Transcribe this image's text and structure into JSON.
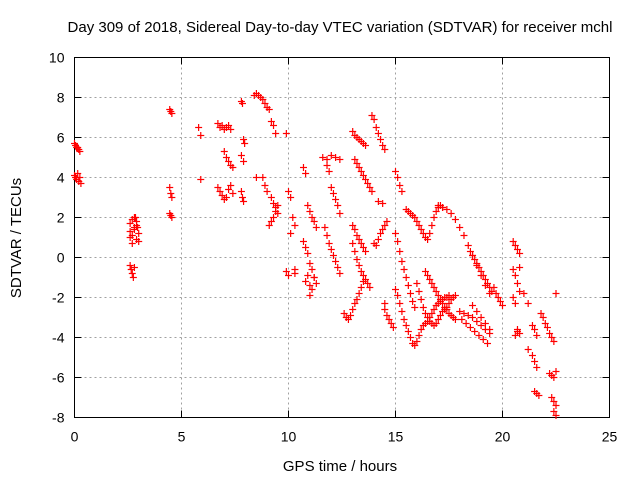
{
  "chart_data": {
    "type": "scatter",
    "title": "Day 309 of 2018, Sidereal Day-to-day VTEC variation (SDTVAR) for receiver mchl",
    "xlabel": "GPS time / hours",
    "ylabel": "SDTVAR / TECUs",
    "xlim": [
      0,
      25
    ],
    "ylim": [
      -8,
      10
    ],
    "xticks": [
      0,
      5,
      10,
      15,
      20,
      25
    ],
    "yticks": [
      -8,
      -6,
      -4,
      -2,
      0,
      2,
      4,
      6,
      8,
      10
    ],
    "marker": "plus",
    "color": "#ff0000",
    "grid": true,
    "series": [
      {
        "name": "SDTVAR",
        "x": [
          0.0,
          0.05,
          0.1,
          0.15,
          0.2,
          0.25,
          0.0,
          0.05,
          0.1,
          0.15,
          0.2,
          0.25,
          0.3,
          2.6,
          2.65,
          2.7,
          2.75,
          2.8,
          2.85,
          2.9,
          2.95,
          3.0,
          2.6,
          2.7,
          2.8,
          2.9,
          3.0,
          2.6,
          2.7,
          2.8,
          2.9,
          2.6,
          2.7,
          2.8,
          4.45,
          4.5,
          4.55,
          4.45,
          4.5,
          4.55,
          4.45,
          4.5,
          4.55,
          5.8,
          5.9,
          5.9,
          6.7,
          6.8,
          6.9,
          7.0,
          7.1,
          7.2,
          7.3,
          6.7,
          6.8,
          6.9,
          7.0,
          7.1,
          7.2,
          7.3,
          7.4,
          7.0,
          7.1,
          7.2,
          7.3,
          7.4,
          7.8,
          7.85,
          7.9,
          7.95,
          7.8,
          7.9,
          7.8,
          7.85,
          7.9,
          8.4,
          8.5,
          8.6,
          8.7,
          8.8,
          8.9,
          9.0,
          9.1,
          9.2,
          9.3,
          9.4,
          8.5,
          8.8,
          8.9,
          9.0,
          9.2,
          9.3,
          9.4,
          9.5,
          9.1,
          9.2,
          9.3,
          9.4,
          9.5,
          9.9,
          10.0,
          10.1,
          10.2,
          10.3,
          10.1,
          10.3,
          10.3,
          9.9,
          10.0,
          10.7,
          10.8,
          10.9,
          11.0,
          11.1,
          11.2,
          11.3,
          10.7,
          10.8,
          10.9,
          11.0,
          11.1,
          11.2,
          10.8,
          10.9,
          11.0,
          11.1,
          11.0,
          11.2,
          11.3,
          11.8,
          11.9,
          12.0,
          12.1,
          12.2,
          12.3,
          12.4,
          11.7,
          11.8,
          11.9,
          12.0,
          12.1,
          12.2,
          12.3,
          12.4,
          11.6,
          11.8,
          12.0,
          12.2,
          12.4,
          12.6,
          12.7,
          12.8,
          12.9,
          13.0,
          13.1,
          13.2,
          13.3,
          13.4,
          13.5,
          13.0,
          13.1,
          13.2,
          13.3,
          13.4,
          13.5,
          13.6,
          13.7,
          13.8,
          13.0,
          13.1,
          13.2,
          13.3,
          13.4,
          13.5,
          13.6,
          13.1,
          13.2,
          13.3,
          13.4,
          13.5,
          13.6,
          13.7,
          13.8,
          13.9,
          13.0,
          13.1,
          13.2,
          13.3,
          13.4,
          13.5,
          13.6,
          13.9,
          14.0,
          14.1,
          14.2,
          14.3,
          14.4,
          14.5,
          14.0,
          14.1,
          14.2,
          14.3,
          14.4,
          14.5,
          14.6,
          14.2,
          14.4,
          14.5,
          14.5,
          14.6,
          14.7,
          14.8,
          14.9,
          15.0,
          15.1,
          15.2,
          15.3,
          15.0,
          15.1,
          15.2,
          15.3,
          15.4,
          15.5,
          15.6,
          15.7,
          15.8,
          15.9,
          15.0,
          15.1,
          15.2,
          15.3,
          15.4,
          15.5,
          15.6,
          15.7,
          15.8,
          15.9,
          16.0,
          16.1,
          16.2,
          16.3,
          16.4,
          16.5,
          16.6,
          16.7,
          16.8,
          16.9,
          17.0,
          17.1,
          17.2,
          17.3,
          17.4,
          17.5,
          15.5,
          15.6,
          15.7,
          15.8,
          15.9,
          16.0,
          16.1,
          16.2,
          16.3,
          16.4,
          16.5,
          16.6,
          16.7,
          16.8,
          16.9,
          17.0,
          17.1,
          17.2,
          16.0,
          16.1,
          16.2,
          16.3,
          16.4,
          16.5,
          16.6,
          16.7,
          16.8,
          16.9,
          17.0,
          17.1,
          17.2,
          17.3,
          17.4,
          17.5,
          17.6,
          17.7,
          17.8,
          16.4,
          16.5,
          16.6,
          16.7,
          16.8,
          16.9,
          17.0,
          17.1,
          17.2,
          17.3,
          17.4,
          17.5,
          17.6,
          17.7,
          17.8,
          17.0,
          17.2,
          17.4,
          17.6,
          17.8,
          18.0,
          18.2,
          18.4,
          18.6,
          18.8,
          19.0,
          19.2,
          19.4,
          18.0,
          18.2,
          18.4,
          18.6,
          18.8,
          19.0,
          19.2,
          19.4,
          18.1,
          18.3,
          18.5,
          18.7,
          18.9,
          19.1,
          19.3,
          18.5,
          18.6,
          18.7,
          18.8,
          18.9,
          19.0,
          19.1,
          19.2,
          19.3,
          19.4,
          19.5,
          18.6,
          18.8,
          19.0,
          19.2,
          19.4,
          19.6,
          19.7,
          19.8,
          19.9,
          20.0,
          20.5,
          20.6,
          20.7,
          20.8,
          20.5,
          20.6,
          20.7,
          20.8,
          20.5,
          20.6,
          20.7,
          20.8,
          20.6,
          20.7,
          20.8,
          21.0,
          21.2,
          21.4,
          21.5,
          21.6,
          21.2,
          21.4,
          21.5,
          21.6,
          21.5,
          21.6,
          21.7,
          21.8,
          21.9,
          22.0,
          22.1,
          22.2,
          22.3,
          22.4,
          22.5,
          22.2,
          22.3,
          22.4,
          22.5,
          22.3,
          22.4,
          22.5,
          22.4,
          22.5
        ],
        "y": [
          5.7,
          5.6,
          5.5,
          5.5,
          5.4,
          5.3,
          4.1,
          4.0,
          3.9,
          4.2,
          3.8,
          4.0,
          3.7,
          -0.4,
          -0.6,
          -0.8,
          -1.0,
          -0.5,
          2.0,
          1.8,
          1.5,
          1.2,
          1.0,
          1.9,
          1.4,
          0.9,
          0.8,
          1.7,
          1.1,
          2.0,
          1.6,
          1.3,
          0.7,
          1.5,
          7.4,
          7.3,
          7.2,
          3.5,
          3.2,
          3.0,
          2.2,
          2.1,
          2.0,
          6.5,
          6.1,
          3.9,
          6.7,
          6.5,
          6.6,
          6.4,
          6.5,
          6.6,
          6.4,
          3.5,
          3.3,
          3.1,
          2.9,
          3.0,
          3.4,
          3.6,
          3.2,
          5.3,
          5.0,
          4.8,
          4.6,
          4.5,
          7.8,
          7.7,
          5.9,
          5.7,
          5.1,
          4.8,
          3.3,
          3.0,
          2.8,
          8.1,
          8.2,
          8.1,
          8.0,
          7.9,
          7.7,
          7.5,
          7.4,
          6.8,
          6.6,
          6.2,
          4.0,
          4.0,
          3.6,
          3.3,
          3.0,
          2.7,
          2.5,
          2.2,
          1.6,
          1.8,
          2.0,
          2.3,
          2.6,
          6.2,
          3.3,
          3.0,
          2.0,
          1.6,
          1.2,
          -0.6,
          -0.8,
          -0.7,
          -0.9,
          4.5,
          4.2,
          2.6,
          2.3,
          2.0,
          1.8,
          1.5,
          0.8,
          0.5,
          0.2,
          -0.3,
          -0.6,
          -1.0,
          -1.2,
          -0.9,
          -1.4,
          -1.6,
          -1.9,
          -1.0,
          -1.3,
          4.6,
          4.3,
          3.5,
          3.2,
          2.9,
          2.6,
          2.2,
          1.5,
          1.1,
          0.7,
          0.4,
          0.1,
          -0.2,
          -0.5,
          -0.8,
          5.0,
          4.9,
          5.1,
          5.0,
          4.9,
          -2.8,
          -3.0,
          -3.1,
          -2.9,
          -2.6,
          -2.3,
          -2.1,
          -1.8,
          -1.5,
          -1.2,
          0.7,
          0.3,
          -0.1,
          -0.4,
          -0.7,
          -0.9,
          -1.1,
          -1.3,
          -1.5,
          6.3,
          6.1,
          6.0,
          5.9,
          5.8,
          5.7,
          5.6,
          4.9,
          4.7,
          4.5,
          4.3,
          4.1,
          3.9,
          3.7,
          3.5,
          3.3,
          1.6,
          1.4,
          1.1,
          0.9,
          0.7,
          0.5,
          0.3,
          7.1,
          6.9,
          6.5,
          6.2,
          5.9,
          5.6,
          5.4,
          0.7,
          0.6,
          0.9,
          1.2,
          1.4,
          1.6,
          1.8,
          2.8,
          2.7,
          -2.3,
          -2.6,
          -2.9,
          -3.1,
          -3.3,
          -3.5,
          4.3,
          4.0,
          3.6,
          3.3,
          1.2,
          0.8,
          0.3,
          -0.2,
          -0.6,
          -1.0,
          -1.4,
          -1.8,
          -2.2,
          -2.5,
          -1.6,
          -1.9,
          -2.3,
          -2.7,
          -3.1,
          -3.4,
          -3.7,
          -4.0,
          -4.3,
          -4.4,
          -4.2,
          -3.9,
          -3.6,
          -3.4,
          -3.3,
          -3.2,
          -3.0,
          -2.8,
          -2.6,
          -2.4,
          -2.3,
          -2.2,
          -2.1,
          -2.0,
          -2.0,
          -1.9,
          2.4,
          2.3,
          2.2,
          2.1,
          2.0,
          1.8,
          1.6,
          1.4,
          1.2,
          1.0,
          0.9,
          1.2,
          1.6,
          2.0,
          2.3,
          2.5,
          2.6,
          2.5,
          -1.3,
          -1.7,
          -2.1,
          -2.5,
          -2.8,
          -3.0,
          -3.2,
          -3.3,
          -3.4,
          -3.3,
          -3.1,
          -2.9,
          -2.7,
          -2.6,
          -2.5,
          -2.3,
          -2.1,
          -2.0,
          -1.9,
          -0.7,
          -0.9,
          -1.1,
          -1.3,
          -1.5,
          -1.7,
          -1.9,
          -2.1,
          -2.3,
          -2.5,
          -2.6,
          -2.8,
          -2.9,
          -3.0,
          -3.1,
          2.6,
          2.5,
          2.4,
          2.2,
          1.9,
          1.5,
          1.1,
          0.6,
          0.1,
          -0.4,
          -0.9,
          -1.4,
          -1.8,
          -2.7,
          -2.8,
          -2.9,
          -3.0,
          -3.2,
          -3.4,
          -3.6,
          -3.8,
          -3.1,
          -3.3,
          -3.5,
          -3.7,
          -3.9,
          -4.1,
          -4.3,
          0.3,
          0.1,
          -0.1,
          -0.3,
          -0.5,
          -0.7,
          -0.9,
          -1.1,
          -1.3,
          -1.5,
          -1.7,
          -2.4,
          -2.7,
          -3.0,
          -3.3,
          -3.6,
          -1.5,
          -1.8,
          -2.0,
          -2.2,
          -2.4,
          0.8,
          0.6,
          0.4,
          0.2,
          -0.6,
          -0.9,
          -1.3,
          -1.7,
          -2.0,
          -2.3,
          -3.6,
          -3.8,
          -3.9,
          -3.7,
          -0.5,
          -1.8,
          -2.3,
          -3.4,
          -3.6,
          -3.9,
          -4.6,
          -4.9,
          -5.2,
          -5.5,
          -6.7,
          -6.8,
          -6.9,
          -2.8,
          -3.0,
          -3.3,
          -3.5,
          -3.8,
          -4.0,
          -4.2,
          -1.8,
          -5.8,
          -5.9,
          -6.0,
          -5.7,
          -7.0,
          -7.2,
          -7.4,
          -7.7,
          -7.9
        ]
      }
    ]
  }
}
